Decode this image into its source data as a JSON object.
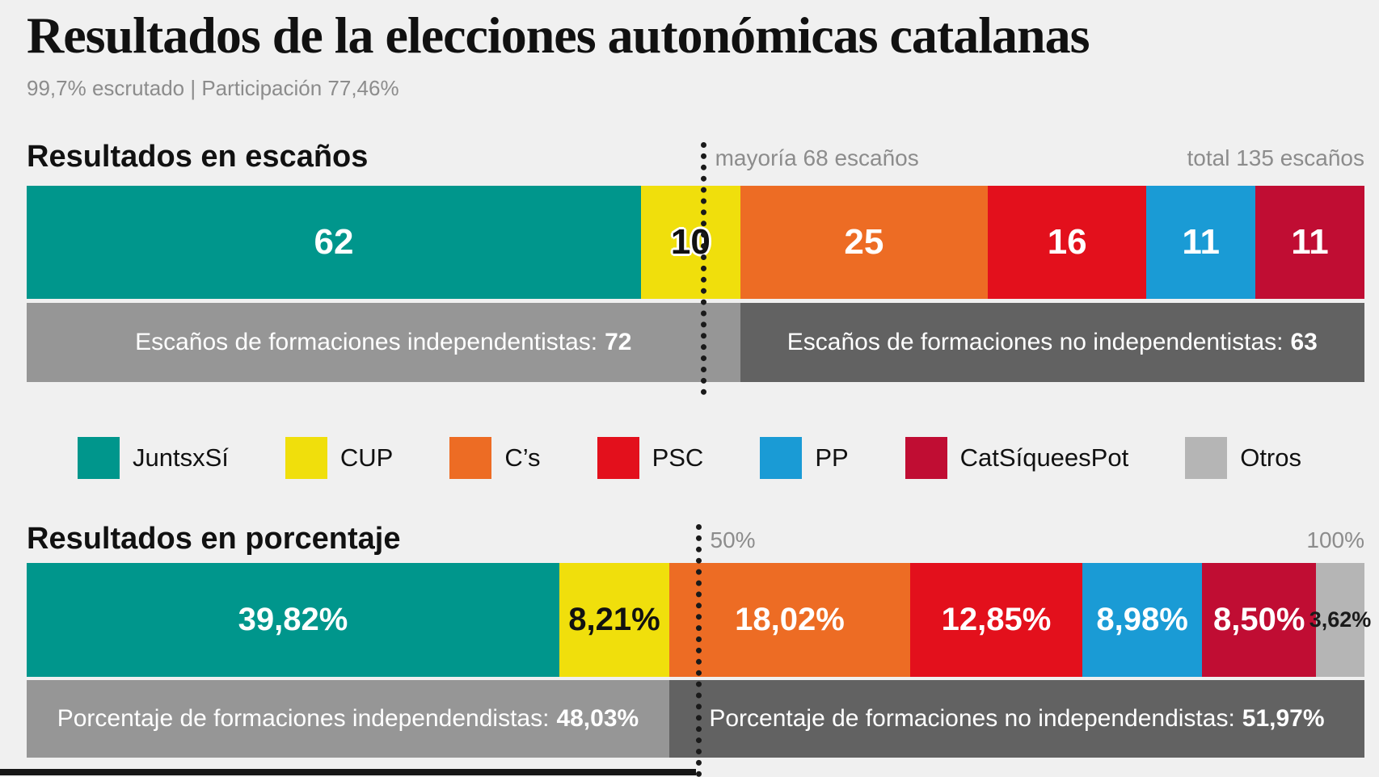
{
  "header": {
    "title": "Resultados de la elecciones autonómicas catalanas",
    "subtitle": "99,7% escrutado | Participación 77,46%"
  },
  "colors": {
    "background": "#f0f0f0",
    "independent_band": "#969696",
    "non_independent_band": "#626262",
    "divider_line": "#1a1a1a",
    "annotation_text": "#8c8c8c"
  },
  "parties": [
    {
      "name": "JuntsxSí",
      "color": "#00968C"
    },
    {
      "name": "CUP",
      "color": "#F0DF0C"
    },
    {
      "name": "C’s",
      "color": "#ED6C24"
    },
    {
      "name": "PSC",
      "color": "#E3101C"
    },
    {
      "name": "PP",
      "color": "#1A9BD5"
    },
    {
      "name": "CatSíqueesPot",
      "color": "#C00D33"
    },
    {
      "name": "Otros",
      "color": "#B5B5B5"
    }
  ],
  "seats": {
    "heading": "Resultados en escaños",
    "majority_label": "mayoría 68 escaños",
    "total_label": "total 135 escaños",
    "total": 135,
    "divider_percent": 50.37,
    "split_percent": 53.33,
    "segments": [
      {
        "party": "JuntsxSí",
        "value": 62,
        "label": "62",
        "color": "#00968C",
        "text_color": "#ffffff"
      },
      {
        "party": "CUP",
        "value": 10,
        "label": "10",
        "color": "#F0DF0C",
        "text_color": "#111111",
        "halo": true
      },
      {
        "party": "C’s",
        "value": 25,
        "label": "25",
        "color": "#ED6C24",
        "text_color": "#ffffff"
      },
      {
        "party": "PSC",
        "value": 16,
        "label": "16",
        "color": "#E3101C",
        "text_color": "#ffffff"
      },
      {
        "party": "PP",
        "value": 11,
        "label": "11",
        "color": "#1A9BD5",
        "text_color": "#ffffff"
      },
      {
        "party": "CatSíqueesPot",
        "value": 11,
        "label": "11",
        "color": "#C00D33",
        "text_color": "#ffffff"
      }
    ],
    "summary_left": {
      "text": "Escaños de formaciones independentistas:",
      "value": "72"
    },
    "summary_right": {
      "text": "Escaños de formaciones no independentistas:",
      "value": "63"
    }
  },
  "percent": {
    "heading": "Resultados en porcentaje",
    "majority_label": "50%",
    "total_label": "100%",
    "total": 100,
    "divider_percent": 50,
    "split_percent": 48.03,
    "segments": [
      {
        "party": "JuntsxSí",
        "value": 39.82,
        "label": "39,82%",
        "color": "#00968C",
        "text_color": "#ffffff"
      },
      {
        "party": "CUP",
        "value": 8.21,
        "label": "8,21%",
        "color": "#F0DF0C",
        "text_color": "#111111"
      },
      {
        "party": "C’s",
        "value": 18.02,
        "label": "18,02%",
        "color": "#ED6C24",
        "text_color": "#ffffff"
      },
      {
        "party": "PSC",
        "value": 12.85,
        "label": "12,85%",
        "color": "#E3101C",
        "text_color": "#ffffff"
      },
      {
        "party": "PP",
        "value": 8.98,
        "label": "8,98%",
        "color": "#1A9BD5",
        "text_color": "#ffffff"
      },
      {
        "party": "CatSíqueesPot",
        "value": 8.5,
        "label": "8,50%",
        "color": "#C00D33",
        "text_color": "#ffffff"
      },
      {
        "party": "Otros",
        "value": 3.62,
        "label": "3,62%",
        "color": "#B5B5B5",
        "text_color": "#1a1a1a",
        "small": true
      }
    ],
    "summary_left": {
      "text": "Porcentaje de formaciones independendistas:",
      "value": "48,03%"
    },
    "summary_right": {
      "text": "Porcentaje de formaciones no independendistas:",
      "value": "51,97%"
    }
  },
  "chart_data": [
    {
      "type": "bar",
      "subtype": "stacked-horizontal",
      "title": "Resultados en escaños",
      "categories": [
        "JuntsxSí",
        "CUP",
        "C’s",
        "PSC",
        "PP",
        "CatSíqueesPot"
      ],
      "values": [
        62,
        10,
        25,
        16,
        11,
        11
      ],
      "total": 135,
      "majority": 68,
      "annotations": [
        "mayoría 68 escaños",
        "total 135 escaños"
      ],
      "groups": {
        "independentistas": 72,
        "no_independentistas": 63
      },
      "legend_position": "below",
      "xlim": [
        0,
        135
      ]
    },
    {
      "type": "bar",
      "subtype": "stacked-horizontal",
      "title": "Resultados en porcentaje",
      "categories": [
        "JuntsxSí",
        "CUP",
        "C’s",
        "PSC",
        "PP",
        "CatSíqueesPot",
        "Otros"
      ],
      "values": [
        39.82,
        8.21,
        18.02,
        12.85,
        8.98,
        8.5,
        3.62
      ],
      "total": 100,
      "annotations": [
        "50%",
        "100%"
      ],
      "groups": {
        "independendistas": 48.03,
        "no_independendistas": 51.97
      },
      "legend_position": "above",
      "xlim": [
        0,
        100
      ]
    }
  ]
}
